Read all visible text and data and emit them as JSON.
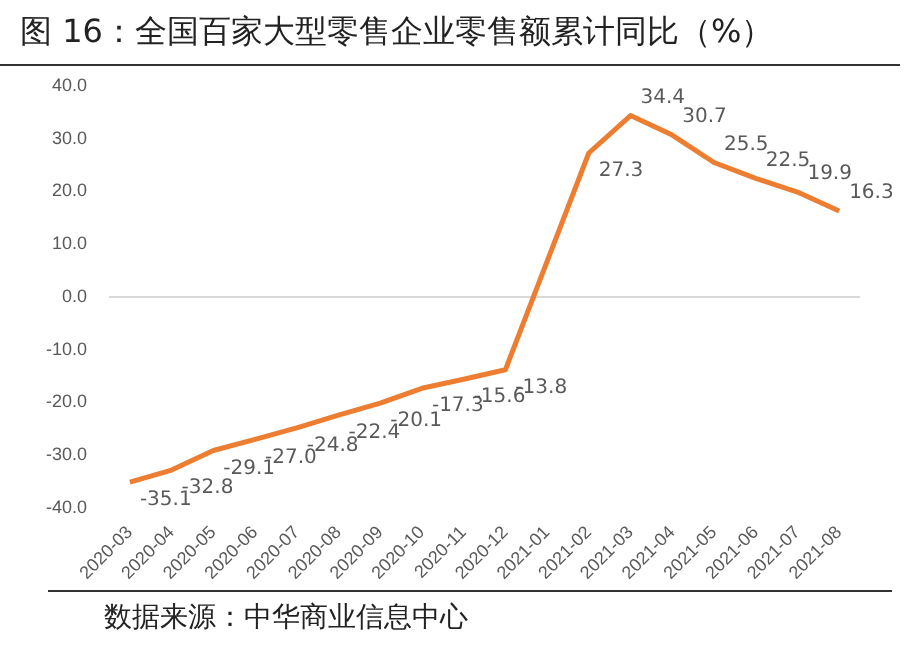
{
  "chart_data": {
    "type": "line",
    "title": "图 16：全国百家大型零售企业零售额累计同比（%）",
    "categories": [
      "2020-03",
      "2020-04",
      "2020-05",
      "2020-06",
      "2020-07",
      "2020-08",
      "2020-09",
      "2020-10",
      "2020-11",
      "2020-12",
      "2021-01",
      "2021-02",
      "2021-03",
      "2021-04",
      "2021-05",
      "2021-06",
      "2021-07",
      "2021-08"
    ],
    "series": [
      {
        "color": "#ed7d31",
        "values": [
          -35.1,
          -32.8,
          -29.1,
          -27.0,
          -24.8,
          -22.4,
          -20.1,
          -17.3,
          -15.6,
          -13.8,
          null,
          27.3,
          34.4,
          30.7,
          25.5,
          22.5,
          19.9,
          16.3
        ],
        "value_labels": [
          "-35.1",
          "-32.8",
          "-29.1",
          "-27.0",
          "-24.8",
          "-22.4",
          "-20.1",
          "-17.3",
          "-15.6",
          "-13.8",
          null,
          "27.3",
          "34.4",
          "30.7",
          "25.5",
          "22.5",
          "19.9",
          "16.3"
        ]
      }
    ],
    "ylim": [
      -40,
      40
    ],
    "yticks": [
      {
        "value": -40,
        "label": "-40.0"
      },
      {
        "value": -30,
        "label": "-30.0"
      },
      {
        "value": -20,
        "label": "-20.0"
      },
      {
        "value": -10,
        "label": "-10.0"
      },
      {
        "value": 0,
        "label": "0.0"
      },
      {
        "value": 10,
        "label": "10.0"
      },
      {
        "value": 20,
        "label": "20.0"
      },
      {
        "value": 30,
        "label": "30.0"
      },
      {
        "value": 40,
        "label": "40.0"
      }
    ],
    "ref_lines": [
      {
        "axis": "y",
        "value": 0,
        "color": "#d9d9d9"
      }
    ],
    "grid": false,
    "legend": false,
    "marker": "none",
    "line_style": "solid",
    "annotations": [
      "数据来源：中华商业信息中心"
    ]
  }
}
